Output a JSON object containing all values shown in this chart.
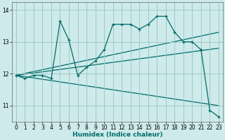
{
  "xlabel": "Humidex (Indice chaleur)",
  "xlim": [
    -0.5,
    23.5
  ],
  "ylim": [
    10.5,
    14.25
  ],
  "yticks": [
    11,
    12,
    13,
    14
  ],
  "xticks": [
    0,
    1,
    2,
    3,
    4,
    5,
    6,
    7,
    8,
    9,
    10,
    11,
    12,
    13,
    14,
    15,
    16,
    17,
    18,
    19,
    20,
    21,
    22,
    23
  ],
  "bg_color": "#ceeaea",
  "grid_color": "#9fc8c8",
  "line_color": "#006b6b",
  "main_x": [
    0,
    1,
    2,
    3,
    4,
    5,
    6,
    7,
    8,
    9,
    10,
    11,
    12,
    13,
    14,
    15,
    16,
    17,
    18,
    19,
    20,
    21,
    22,
    23
  ],
  "main_y": [
    11.95,
    11.85,
    11.95,
    11.95,
    11.85,
    13.65,
    13.05,
    11.95,
    12.2,
    12.4,
    12.75,
    13.55,
    13.55,
    13.55,
    13.4,
    13.55,
    13.8,
    13.8,
    13.3,
    13.0,
    13.0,
    12.75,
    10.85,
    10.65
  ],
  "trend1_x": [
    0,
    23
  ],
  "trend1_y": [
    11.95,
    11.0
  ],
  "trend2_x": [
    0,
    23
  ],
  "trend2_y": [
    11.95,
    13.3
  ],
  "trend3_x": [
    0,
    23
  ],
  "trend3_y": [
    11.95,
    12.8
  ],
  "tickfontsize": 5.5,
  "xlabel_fontsize": 6.5
}
